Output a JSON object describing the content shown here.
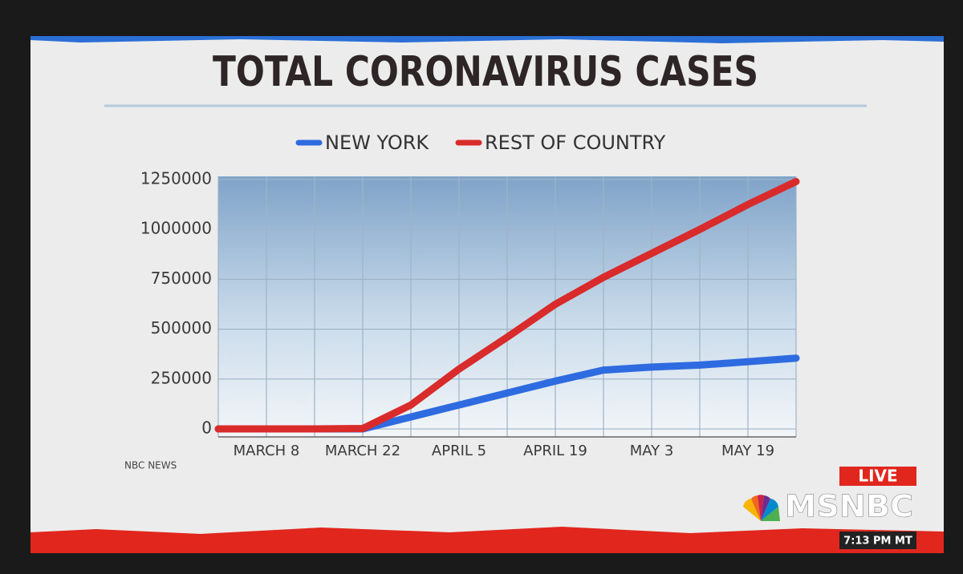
{
  "chart_data": {
    "type": "line",
    "title": "TOTAL CORONAVIRUS CASES",
    "categories": [
      null,
      "MARCH 8",
      null,
      "MARCH 22",
      null,
      "APRIL 5",
      null,
      "APRIL 19",
      null,
      "MAY 3",
      null,
      "MAY 19",
      null
    ],
    "series": [
      {
        "name": "NEW YORK",
        "color": "#2f6be0",
        "values": [
          0,
          0,
          0,
          0,
          60000,
          120000,
          180000,
          240000,
          295000,
          310000,
          320000,
          337000,
          355000
        ]
      },
      {
        "name": "REST OF COUNTRY",
        "color": "#d92b2b",
        "values": [
          0,
          0,
          0,
          2000,
          120000,
          300000,
          460000,
          625000,
          760000,
          880000,
          1000000,
          1125000,
          1240000
        ]
      }
    ],
    "ylim": [
      -40000,
      1266000
    ],
    "yticks": [
      0,
      250000,
      500000,
      750000,
      1000000,
      1250000
    ],
    "grid": true,
    "source": "NBC NEWS"
  },
  "overlay": {
    "live": "LIVE",
    "network": "MSNBC",
    "time": "7:13 PM MT"
  }
}
